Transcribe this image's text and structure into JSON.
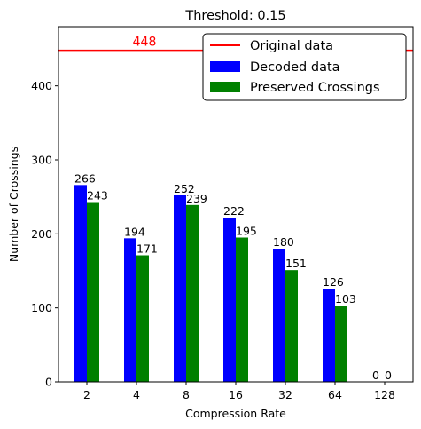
{
  "chart_data": {
    "type": "bar",
    "title": "Threshold: 0.15",
    "xlabel": "Compression Rate",
    "ylabel": "Number of Crossings",
    "categories": [
      "2",
      "4",
      "8",
      "16",
      "32",
      "64",
      "128"
    ],
    "series": [
      {
        "name": "Decoded data",
        "color": "#0000ff",
        "values": [
          266,
          194,
          252,
          222,
          180,
          126,
          0
        ]
      },
      {
        "name": "Preserved Crossings",
        "color": "#008000",
        "values": [
          243,
          171,
          239,
          195,
          151,
          103,
          0
        ]
      }
    ],
    "reference_line": {
      "name": "Original data",
      "value": 448,
      "label": "448",
      "color": "#ff0000"
    },
    "ylim": [
      0,
      480
    ],
    "yticks": [
      0,
      100,
      200,
      300,
      400
    ],
    "grid": false,
    "legend_position": "top-right"
  }
}
